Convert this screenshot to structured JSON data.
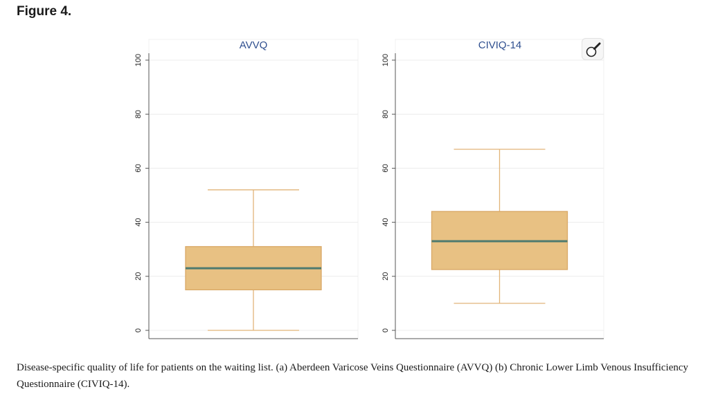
{
  "figure": {
    "heading": "Figure 4.",
    "caption": "Disease-specific quality of life for patients on the waiting list. (a) Aberdeen Varicose Veins Questionnaire (AVVQ) (b) Chronic Lower Limb Venous Insufficiency Questionnaire (CIVIQ-14).",
    "zoom_icon": "magnifier-icon"
  },
  "colors": {
    "box_fill": "#e8c183",
    "box_stroke": "#d9a866",
    "median": "#4e7a6f",
    "whisker": "#e2b478",
    "grid": "#ececec",
    "axis": "#555555",
    "title": "#2f4f8f"
  },
  "chart_data": [
    {
      "type": "box",
      "title": "AVVQ",
      "ylim": [
        0,
        100
      ],
      "yticks": [
        0,
        20,
        40,
        60,
        80,
        100
      ],
      "whisker_low": 0,
      "q1": 15,
      "median": 23,
      "q3": 31,
      "whisker_high": 52
    },
    {
      "type": "box",
      "title": "CIVIQ-14",
      "ylim": [
        0,
        100
      ],
      "yticks": [
        0,
        20,
        40,
        60,
        80,
        100
      ],
      "whisker_low": 10,
      "q1": 22.5,
      "median": 33,
      "q3": 44,
      "whisker_high": 67
    }
  ]
}
